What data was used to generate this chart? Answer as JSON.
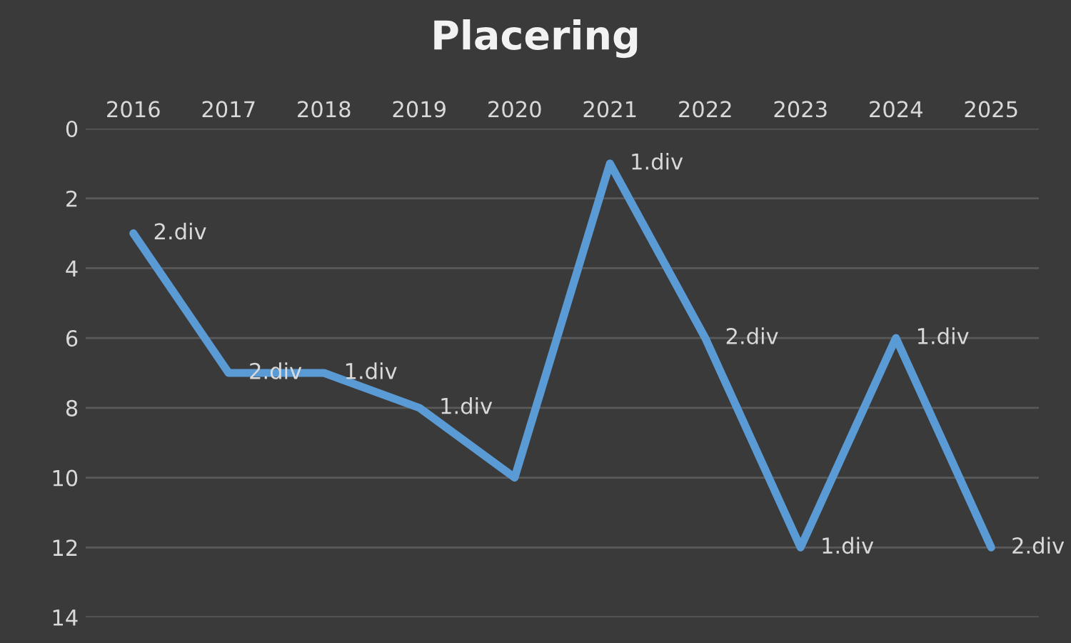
{
  "chart_data": {
    "type": "line",
    "title": "Placering",
    "categories": [
      "2016",
      "2017",
      "2018",
      "2019",
      "2020",
      "2021",
      "2022",
      "2023",
      "2024",
      "2025"
    ],
    "series": [
      {
        "color": "#5b9bd5",
        "values": [
          3,
          7,
          7,
          8,
          10,
          1,
          6,
          12,
          6,
          12
        ]
      }
    ],
    "annotations": [
      {
        "text": "2.div",
        "x": "2016",
        "y": 3
      },
      {
        "text": "2.div",
        "x": "2017",
        "y": 7
      },
      {
        "text": "1.div",
        "x": "2018",
        "y": 7
      },
      {
        "text": "1.div",
        "x": "2019",
        "y": 8
      },
      {
        "text": "1.div",
        "x": "2021",
        "y": 1
      },
      {
        "text": "2.div",
        "x": "2022",
        "y": 6
      },
      {
        "text": "1.div",
        "x": "2023",
        "y": 12
      },
      {
        "text": "1.div",
        "x": "2024",
        "y": 6
      },
      {
        "text": "2.div",
        "x": "2025",
        "y": 12
      }
    ],
    "ylim": [
      14,
      0
    ],
    "yticks": [
      0,
      2,
      4,
      6,
      8,
      10,
      12,
      14
    ],
    "grid": "y",
    "marker": "none",
    "line_style": "solid"
  }
}
